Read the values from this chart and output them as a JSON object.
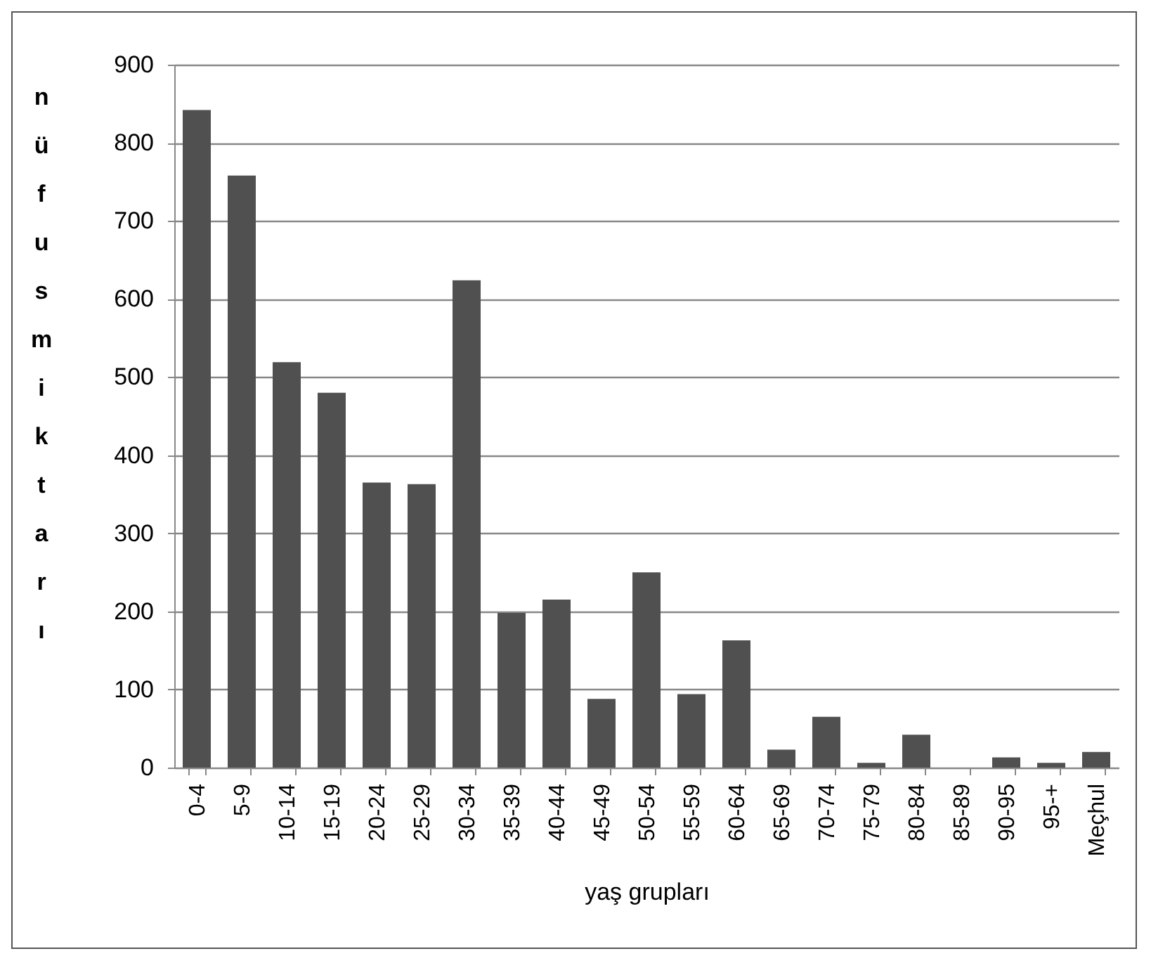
{
  "chart_data": {
    "type": "bar",
    "xlabel": "yaş grupları",
    "ylabel": "nüfus miktarı",
    "categories": [
      "0-4",
      "5-9",
      "10-14",
      "15-19",
      "20-24",
      "25-29",
      "30-34",
      "35-39",
      "40-44",
      "45-49",
      "50-54",
      "55-59",
      "60-64",
      "65-69",
      "70-74",
      "75-79",
      "80-84",
      "85-89",
      "90-95",
      "95-+",
      "Meçhul"
    ],
    "values": [
      842,
      758,
      519,
      480,
      365,
      363,
      624,
      198,
      215,
      88,
      250,
      94,
      163,
      23,
      65,
      6,
      42,
      0,
      13,
      6,
      20
    ],
    "color": "#505050",
    "ylim": [
      0,
      900
    ],
    "yticks": [
      0,
      100,
      200,
      300,
      400,
      500,
      600,
      700,
      800,
      900
    ],
    "grid": "y"
  }
}
